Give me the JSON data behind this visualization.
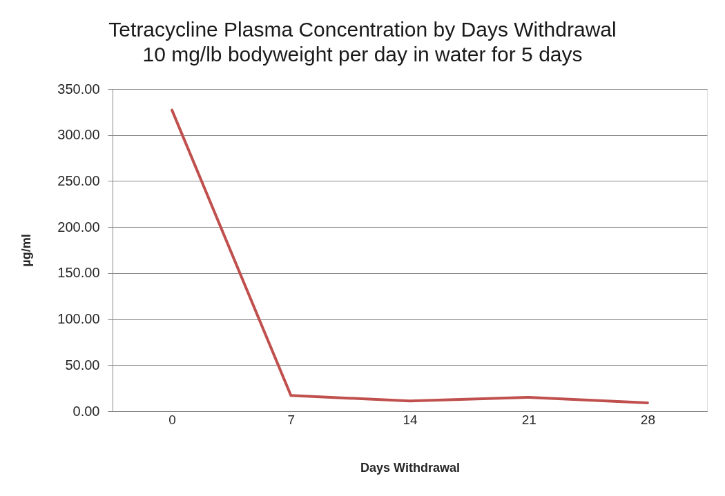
{
  "chart_data": {
    "type": "line",
    "title": "Tetracycline Plasma Concentration by Days Withdrawal",
    "subtitle": "10 mg/lb bodyweight per day in water for 5 days",
    "xlabel": "Days Withdrawal",
    "ylabel": "µg/ml",
    "categories": [
      "0",
      "7",
      "14",
      "21",
      "28"
    ],
    "series": [
      {
        "color": "#c0504d",
        "values": [
          327,
          17,
          11,
          15,
          9
        ]
      }
    ],
    "ylim": [
      0,
      350
    ],
    "yticks": [
      {
        "value": 0,
        "label": "0.00"
      },
      {
        "value": 50,
        "label": "50.00"
      },
      {
        "value": 100,
        "label": "100.00"
      },
      {
        "value": 150,
        "label": "150.00"
      },
      {
        "value": 200,
        "label": "200.00"
      },
      {
        "value": 250,
        "label": "250.00"
      },
      {
        "value": 300,
        "label": "300.00"
      },
      {
        "value": 350,
        "label": "350.00"
      }
    ],
    "grid": "y",
    "legend": false,
    "marker": "none",
    "line_style": "solid"
  }
}
